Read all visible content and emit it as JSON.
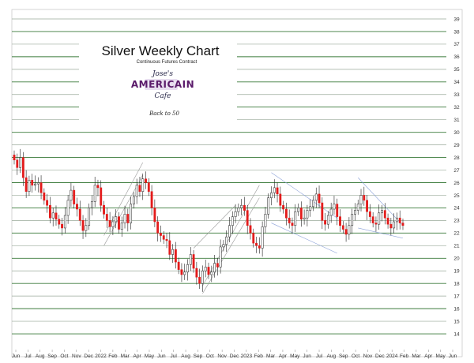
{
  "chart_data": {
    "type": "candlestick",
    "title": "Silver Weekly Chart",
    "subtitle": "Continuous Futures Contract",
    "logo": {
      "line1": "Jose's",
      "line2": "AMERICAIN",
      "line3": "Cafe"
    },
    "tagline": "Back to 50",
    "y_axis": {
      "min": 13,
      "max": 39,
      "position": "right",
      "ticks": [
        14,
        15,
        16,
        17,
        18,
        19,
        20,
        21,
        22,
        23,
        24,
        25,
        26,
        27,
        28,
        29,
        30,
        31,
        32,
        33,
        34,
        35,
        36,
        37,
        38,
        39
      ]
    },
    "x_axis": {
      "labels": [
        "Jun",
        "Jul",
        "Aug",
        "Sep",
        "Oct",
        "Nov",
        "Dec",
        "2022",
        "Feb",
        "Mar",
        "Apr",
        "May",
        "Jun",
        "Jul",
        "Aug",
        "Sep",
        "Oct",
        "Nov",
        "Dec",
        "2023",
        "Feb",
        "Mar",
        "Apr",
        "May",
        "Jun",
        "Jul",
        "Aug",
        "Sep",
        "Oct",
        "Nov",
        "Dec",
        "2024",
        "Feb",
        "Mar",
        "Apr",
        "May",
        "Jun"
      ],
      "label_positions_months": [
        0,
        1,
        2,
        3,
        4,
        5,
        6,
        7,
        8,
        9,
        10,
        11,
        12,
        13,
        14,
        15,
        16,
        17,
        18,
        19,
        20,
        21,
        22,
        23,
        24,
        25,
        26,
        27,
        28,
        29,
        30,
        31,
        32,
        33,
        34,
        35,
        36
      ]
    },
    "grid": true,
    "gridline_colors": {
      "major": "#3a7a3a",
      "minor": "#9aaa9a"
    },
    "candle_colors": {
      "up": "#ffffff",
      "down": "#e31b1b",
      "wick": "#222222"
    },
    "weekly_closes": [
      27.8,
      27.2,
      28.0,
      26.4,
      25.3,
      26.2,
      25.8,
      25.9,
      26.0,
      25.2,
      24.6,
      24.2,
      23.2,
      23.6,
      23.1,
      22.7,
      22.4,
      23.4,
      24.6,
      25.4,
      24.3,
      23.9,
      23.0,
      22.2,
      22.6,
      24.0,
      24.5,
      25.8,
      25.6,
      24.2,
      23.5,
      23.0,
      22.5,
      22.9,
      23.3,
      22.3,
      22.8,
      23.5,
      22.8,
      24.3,
      24.9,
      25.8,
      25.3,
      26.3,
      26.0,
      25.3,
      24.0,
      22.9,
      22.0,
      21.8,
      21.5,
      21.4,
      20.3,
      20.7,
      19.7,
      19.1,
      18.7,
      18.9,
      19.5,
      20.3,
      19.2,
      18.5,
      18.0,
      19.0,
      19.3,
      18.7,
      18.9,
      19.6,
      19.3,
      20.9,
      21.1,
      21.7,
      22.6,
      23.3,
      23.7,
      24.0,
      24.2,
      23.8,
      22.6,
      22.0,
      21.2,
      21.0,
      20.8,
      22.5,
      23.5,
      24.8,
      25.2,
      25.6,
      25.1,
      24.2,
      23.9,
      23.2,
      22.8,
      22.6,
      23.7,
      24.0,
      23.1,
      23.2,
      23.8,
      24.1,
      24.6,
      25.1,
      24.4,
      23.0,
      22.7,
      23.4,
      23.9,
      24.3,
      23.3,
      22.6,
      22.3,
      21.9,
      22.6,
      23.5,
      23.8,
      24.3,
      25.0,
      24.6,
      23.7,
      23.3,
      22.8,
      22.7,
      23.6,
      23.8,
      23.2,
      22.7,
      22.4,
      22.9,
      23.2,
      22.8,
      22.6
    ]
  }
}
